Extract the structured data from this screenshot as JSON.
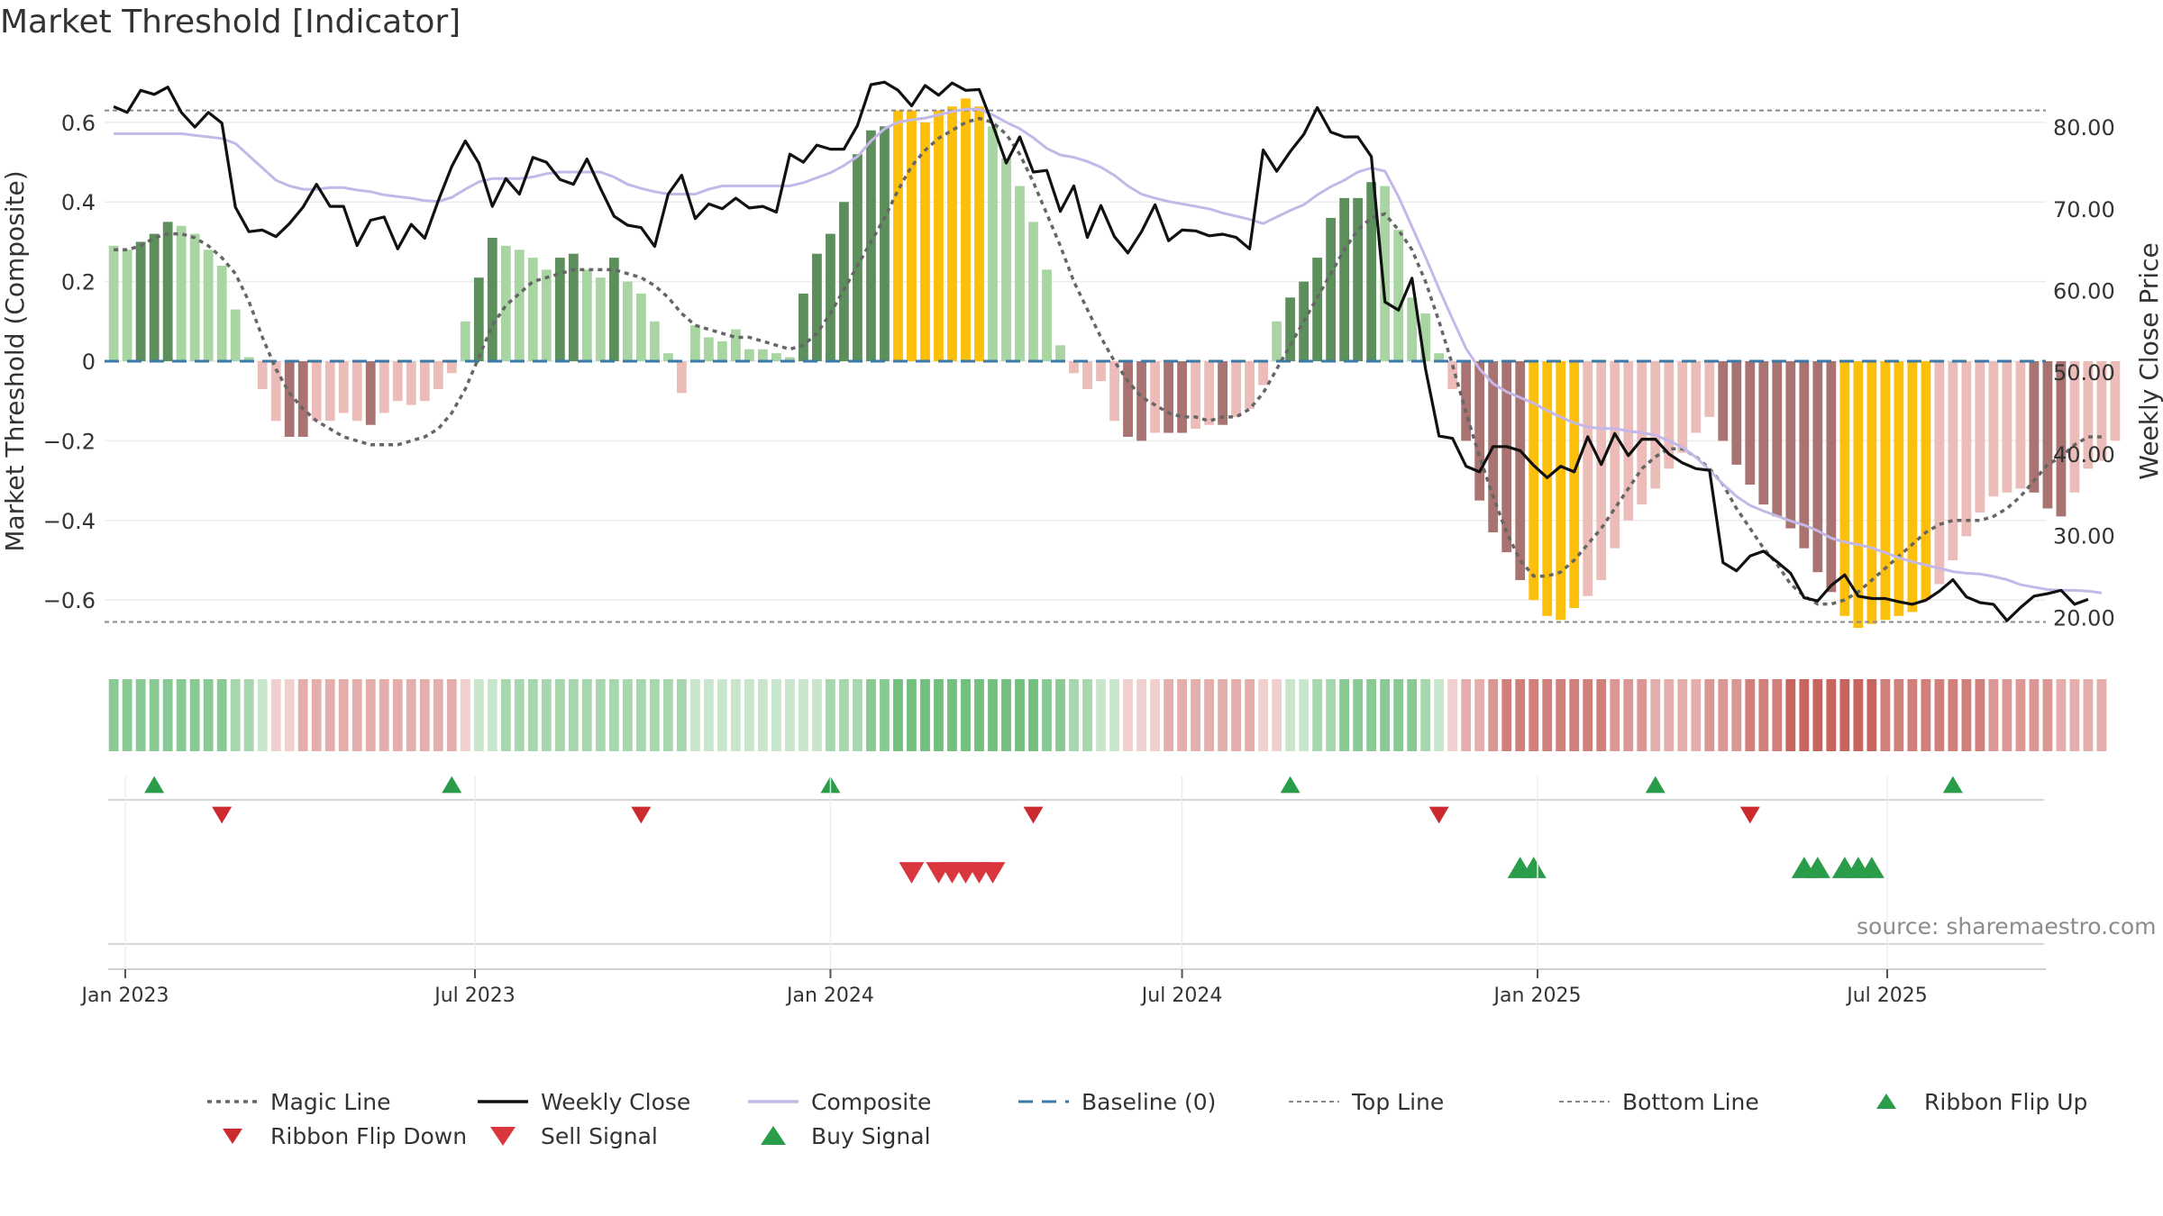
{
  "title": "Market Threshold [Indicator]",
  "source_note": "source: sharemaestro.com",
  "colors": {
    "pos_strong": "#5d8f5d",
    "pos_light": "#a8d5a2",
    "neg_strong": "#a87370",
    "neg_light": "#ecbcb8",
    "extreme": "#fcc00c",
    "close_line": "#111111",
    "composite_line": "#c3b8e8",
    "magic_line": "#666666",
    "baseline": "#3a79a8",
    "threshold_line": "#888888",
    "buy": "#2a9d4a",
    "sell": "#d9363e",
    "grid": "#ececec",
    "axis_text": "#333333"
  },
  "chart_data": {
    "type": "bar",
    "xlabel": "",
    "ylabel_left": "Market Threshold (Composite)",
    "ylabel_right": "Weekly Close Price",
    "x_ticks": [
      "Jan 2023",
      "Jul 2023",
      "Jan 2024",
      "Jul 2024",
      "Jan 2025",
      "Jul 2025"
    ],
    "y_left_ticks": [
      "0.6",
      "0.4",
      "0.2",
      "0",
      "−0.2",
      "−0.4",
      "−0.6"
    ],
    "y_left_tick_values": [
      0.6,
      0.4,
      0.2,
      0,
      -0.2,
      -0.4,
      -0.6
    ],
    "y_right_ticks": [
      "80.00",
      "70.00",
      "60.00",
      "50.00",
      "40.00",
      "30.00",
      "20.00"
    ],
    "y_right_tick_values": [
      80,
      70,
      60,
      50,
      40,
      30,
      20
    ],
    "ylim_left": [
      -0.74,
      0.74
    ],
    "ylim_right": [
      15.3,
      87.4
    ],
    "top_line": 0.63,
    "bottom_line": -0.655,
    "grid": true,
    "legend_placement": "bottom",
    "start_date": "2022-12-26",
    "week_count": 148,
    "weekly_composite": [
      0.29,
      0.28,
      0.3,
      0.32,
      0.35,
      0.34,
      0.32,
      0.28,
      0.24,
      0.13,
      0.01,
      -0.07,
      -0.15,
      -0.19,
      -0.19,
      -0.15,
      -0.15,
      -0.13,
      -0.15,
      -0.16,
      -0.13,
      -0.1,
      -0.11,
      -0.1,
      -0.07,
      -0.03,
      0.1,
      0.21,
      0.31,
      0.29,
      0.28,
      0.26,
      0.23,
      0.26,
      0.27,
      0.23,
      0.21,
      0.26,
      0.2,
      0.17,
      0.1,
      0.02,
      -0.08,
      0.09,
      0.06,
      0.05,
      0.08,
      0.03,
      0.03,
      0.02,
      0.01,
      0.17,
      0.27,
      0.32,
      0.4,
      0.52,
      0.58,
      0.59,
      0.63,
      0.63,
      0.6,
      0.63,
      0.64,
      0.66,
      0.64,
      0.59,
      0.51,
      0.44,
      0.35,
      0.23,
      0.04,
      -0.03,
      -0.07,
      -0.05,
      -0.15,
      -0.19,
      -0.2,
      -0.18,
      -0.18,
      -0.18,
      -0.17,
      -0.16,
      -0.16,
      -0.14,
      -0.12,
      -0.06,
      0.1,
      0.16,
      0.2,
      0.26,
      0.36,
      0.41,
      0.41,
      0.45,
      0.44,
      0.33,
      0.16,
      0.12,
      0.02,
      -0.07,
      -0.2,
      -0.35,
      -0.43,
      -0.48,
      -0.55,
      -0.6,
      -0.64,
      -0.65,
      -0.62,
      -0.59,
      -0.55,
      -0.47,
      -0.4,
      -0.36,
      -0.32,
      -0.27,
      -0.23,
      -0.18,
      -0.14,
      -0.2,
      -0.26,
      -0.31,
      -0.36,
      -0.39,
      -0.42,
      -0.47,
      -0.53,
      -0.58,
      -0.64,
      -0.67,
      -0.66,
      -0.65,
      -0.64,
      -0.63,
      -0.6,
      -0.56,
      -0.5,
      -0.44,
      -0.38,
      -0.34,
      -0.33,
      -0.32,
      -0.33,
      -0.37,
      -0.39,
      -0.33,
      -0.27,
      -0.25,
      -0.2
    ],
    "weekly_close": [
      82.5,
      81.8,
      84.5,
      84.0,
      84.9,
      81.8,
      80.0,
      81.8,
      80.5,
      70.2,
      67.2,
      67.4,
      66.6,
      68.2,
      70.2,
      73.0,
      70.3,
      70.3,
      65.5,
      68.6,
      69.0,
      65.1,
      68.1,
      66.4,
      71.0,
      75.2,
      78.3,
      75.6,
      70.3,
      73.7,
      71.8,
      76.3,
      75.7,
      73.6,
      73.0,
      76.1,
      72.5,
      69.1,
      68.0,
      67.7,
      65.4,
      71.8,
      74.1,
      68.8,
      70.6,
      70.0,
      71.3,
      70.1,
      70.3,
      69.6,
      76.7,
      75.7,
      77.8,
      77.3,
      77.3,
      80.2,
      85.2,
      85.5,
      84.5,
      82.6,
      85.1,
      83.9,
      85.4,
      84.5,
      84.6,
      80.3,
      75.6,
      78.8,
      74.5,
      74.7,
      69.7,
      72.8,
      66.5,
      70.4,
      66.6,
      64.6,
      67.2,
      70.5,
      66.1,
      67.4,
      67.3,
      66.7,
      66.9,
      66.5,
      65.1,
      77.2,
      74.6,
      77.0,
      79.1,
      82.4,
      79.4,
      78.8,
      78.8,
      76.4,
      58.6,
      57.6,
      61.5,
      50.4,
      42.2,
      41.9,
      38.5,
      37.8,
      40.9,
      40.9,
      40.4,
      38.6,
      37.1,
      38.5,
      37.8,
      42.1,
      38.7,
      42.5,
      39.8,
      41.8,
      41.8,
      40.0,
      38.9,
      38.2,
      38.0,
      26.7,
      25.7,
      27.5,
      28.1,
      26.8,
      25.4,
      22.4,
      22.0,
      23.9,
      25.2,
      22.6,
      22.3,
      22.3,
      21.9,
      21.6,
      22.1,
      23.2,
      24.6,
      22.5,
      21.8,
      21.6,
      19.6,
      21.2,
      22.6,
      22.9,
      23.3,
      21.6,
      22.2
    ],
    "weekly_composite_line": [
      79.2,
      79.2,
      79.2,
      79.2,
      79.2,
      79.2,
      79.0,
      78.8,
      78.6,
      78.0,
      76.5,
      75.0,
      73.5,
      72.8,
      72.4,
      72.4,
      72.6,
      72.6,
      72.3,
      72.1,
      71.7,
      71.5,
      71.3,
      71.0,
      70.9,
      71.4,
      72.4,
      73.3,
      73.7,
      73.7,
      73.7,
      73.9,
      74.3,
      74.5,
      74.5,
      74.5,
      74.5,
      73.9,
      73.0,
      72.5,
      72.1,
      71.8,
      71.8,
      71.8,
      72.4,
      72.8,
      72.8,
      72.8,
      72.8,
      72.8,
      72.8,
      73.2,
      73.8,
      74.4,
      75.3,
      76.4,
      78.3,
      79.8,
      80.6,
      80.9,
      81.1,
      81.5,
      81.9,
      82.2,
      82.2,
      81.5,
      80.6,
      79.8,
      78.7,
      77.4,
      76.6,
      76.3,
      75.8,
      75.1,
      74.1,
      72.8,
      71.8,
      71.3,
      70.9,
      70.6,
      70.3,
      70.0,
      69.5,
      69.1,
      68.7,
      68.2,
      69.0,
      69.8,
      70.5,
      71.7,
      72.7,
      73.5,
      74.5,
      75.0,
      74.6,
      71.5,
      67.8,
      64.1,
      60.2,
      56.5,
      52.9,
      50.4,
      48.6,
      47.6,
      46.9,
      46.2,
      45.3,
      44.5,
      43.8,
      43.3,
      43.1,
      43.1,
      42.8,
      42.6,
      42.3,
      41.6,
      40.8,
      39.6,
      38.0,
      36.3,
      34.8,
      33.7,
      33.0,
      32.4,
      31.8,
      31.3,
      30.6,
      29.7,
      29.2,
      28.9,
      28.5,
      27.9,
      27.3,
      26.8,
      26.4,
      26.0,
      25.6,
      25.4,
      25.3,
      25.0,
      24.6,
      24.0,
      23.7,
      23.4,
      23.3,
      23.3,
      23.2,
      23.0
    ],
    "weekly_magic_line": [
      0.28,
      0.28,
      0.29,
      0.31,
      0.32,
      0.32,
      0.31,
      0.29,
      0.26,
      0.22,
      0.15,
      0.06,
      -0.02,
      -0.08,
      -0.12,
      -0.15,
      -0.17,
      -0.19,
      -0.2,
      -0.21,
      -0.21,
      -0.21,
      -0.2,
      -0.19,
      -0.17,
      -0.13,
      -0.07,
      0.01,
      0.09,
      0.14,
      0.17,
      0.2,
      0.21,
      0.22,
      0.23,
      0.23,
      0.23,
      0.23,
      0.22,
      0.21,
      0.19,
      0.16,
      0.12,
      0.09,
      0.08,
      0.07,
      0.06,
      0.06,
      0.05,
      0.04,
      0.03,
      0.04,
      0.07,
      0.12,
      0.18,
      0.24,
      0.3,
      0.36,
      0.43,
      0.49,
      0.53,
      0.56,
      0.58,
      0.6,
      0.61,
      0.6,
      0.57,
      0.52,
      0.45,
      0.37,
      0.29,
      0.2,
      0.13,
      0.06,
      0.0,
      -0.05,
      -0.09,
      -0.11,
      -0.13,
      -0.14,
      -0.14,
      -0.15,
      -0.14,
      -0.14,
      -0.12,
      -0.08,
      -0.02,
      0.04,
      0.1,
      0.16,
      0.22,
      0.28,
      0.33,
      0.36,
      0.37,
      0.33,
      0.28,
      0.2,
      0.1,
      -0.01,
      -0.13,
      -0.24,
      -0.34,
      -0.43,
      -0.5,
      -0.54,
      -0.54,
      -0.53,
      -0.5,
      -0.46,
      -0.42,
      -0.37,
      -0.32,
      -0.27,
      -0.24,
      -0.22,
      -0.22,
      -0.24,
      -0.27,
      -0.31,
      -0.37,
      -0.42,
      -0.47,
      -0.51,
      -0.56,
      -0.59,
      -0.61,
      -0.61,
      -0.6,
      -0.58,
      -0.55,
      -0.52,
      -0.49,
      -0.46,
      -0.43,
      -0.41,
      -0.4,
      -0.4,
      -0.4,
      -0.39,
      -0.37,
      -0.34,
      -0.3,
      -0.26,
      -0.24,
      -0.21,
      -0.19,
      -0.19
    ],
    "ribbon_flip_up_weeks": [
      3,
      25,
      53,
      87,
      114,
      136
    ],
    "ribbon_flip_down_weeks": [
      8,
      39,
      68,
      98,
      121
    ],
    "sell_signal_weeks": [
      59,
      61,
      62,
      63,
      64,
      65
    ],
    "buy_signal_weeks": [
      104,
      105,
      125,
      126,
      128,
      129,
      130
    ]
  },
  "legend": [
    {
      "label": "Magic Line",
      "style": "dotted-dark"
    },
    {
      "label": "Weekly Close",
      "style": "solid-black"
    },
    {
      "label": "Composite",
      "style": "solid-lavender"
    },
    {
      "label": "Baseline (0)",
      "style": "dashed-blue"
    },
    {
      "label": "Top Line",
      "style": "dotted-gray"
    },
    {
      "label": "Bottom Line",
      "style": "dotted-gray"
    },
    {
      "label": "Ribbon Flip Up",
      "style": "triangle-up-small"
    },
    {
      "label": "Ribbon Flip Down",
      "style": "triangle-down-small"
    },
    {
      "label": "Sell Signal",
      "style": "triangle-down-large"
    },
    {
      "label": "Buy Signal",
      "style": "triangle-up-large"
    }
  ]
}
